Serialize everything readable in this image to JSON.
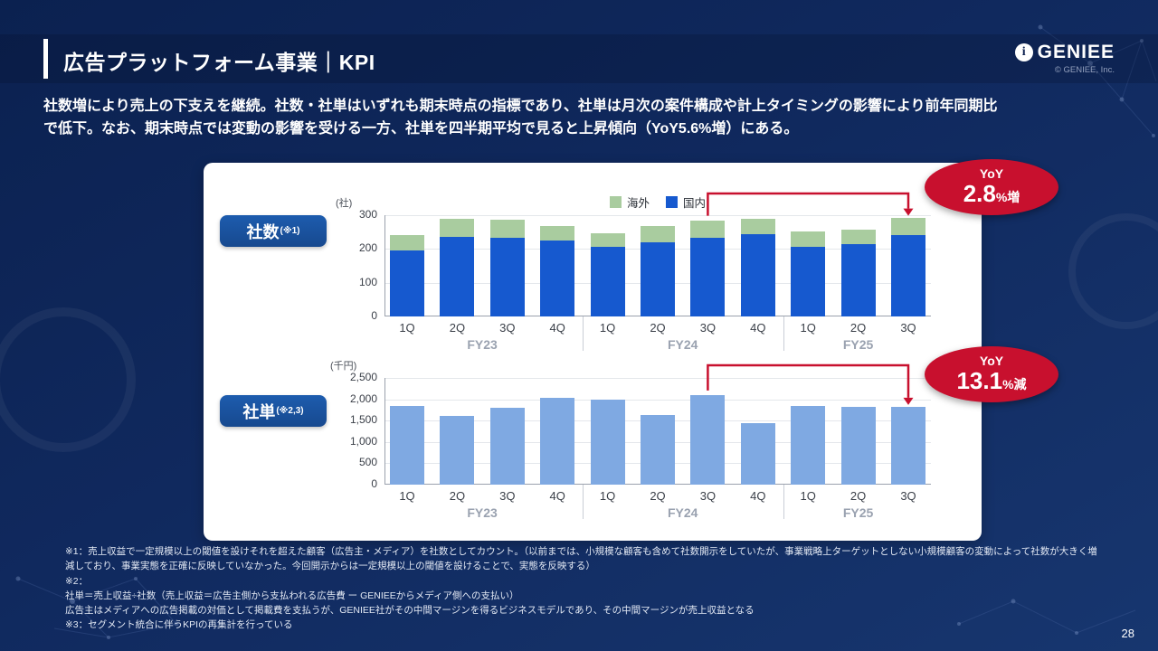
{
  "header": {
    "title": "広告プラットフォーム事業｜KPI",
    "logo_text": "GENIEE",
    "logo_icon_glyph": "i",
    "copyright": "© GENIEE, Inc."
  },
  "intro": {
    "line1": "社数増により売上の下支えを継続。社数・社単はいずれも期末時点の指標であり、社単は月次の案件構成や計上タイミングの影響により前年同期比",
    "line2": "で低下。なお、期末時点では変動の影響を受ける一方、社単を四半期平均で見ると上昇傾向（YoY5.6%増）にある。"
  },
  "kpi_badges": [
    {
      "label": "社数",
      "sup": "(※1)"
    },
    {
      "label": "社単",
      "sup": "(※2,3)"
    }
  ],
  "colors": {
    "domestic_blue": "#1659cf",
    "overseas_green": "#a9cc9f",
    "light_blue": "#7fa9e2",
    "accent_red": "#c8102e",
    "badge_navy": "#17498f"
  },
  "chart_data": [
    {
      "type": "bar",
      "stacked": true,
      "title": "社数",
      "unit": "(社)",
      "categories": [
        "1Q",
        "2Q",
        "3Q",
        "4Q",
        "1Q",
        "2Q",
        "3Q",
        "4Q",
        "1Q",
        "2Q",
        "3Q"
      ],
      "fiscal_years": [
        {
          "label": "FY23",
          "start": 0,
          "end": 3
        },
        {
          "label": "FY24",
          "start": 4,
          "end": 7
        },
        {
          "label": "FY25",
          "start": 8,
          "end": 10
        }
      ],
      "series": [
        {
          "name": "国内",
          "color": "#1659cf",
          "values": [
            196,
            236,
            233,
            225,
            205,
            220,
            232,
            243,
            205,
            215,
            242
          ]
        },
        {
          "name": "海外",
          "color": "#a9cc9f",
          "values": [
            44,
            52,
            53,
            43,
            42,
            47,
            53,
            47,
            47,
            42,
            51
          ]
        }
      ],
      "legend": [
        {
          "label": "海外",
          "color": "#a9cc9f"
        },
        {
          "label": "国内",
          "color": "#1659cf"
        }
      ],
      "ylim": [
        0,
        300
      ],
      "yticks": [
        0,
        100,
        200,
        300
      ],
      "ytick_labels": [
        "0",
        "100",
        "200",
        "300"
      ],
      "grid": true,
      "yoy_arrow": {
        "from_index": 6,
        "to_index": 10
      },
      "yoy_badge": {
        "label": "YoY",
        "value": "2.8",
        "suffix": "%増"
      }
    },
    {
      "type": "bar",
      "stacked": false,
      "title": "社単",
      "unit": "(千円)",
      "categories": [
        "1Q",
        "2Q",
        "3Q",
        "4Q",
        "1Q",
        "2Q",
        "3Q",
        "4Q",
        "1Q",
        "2Q",
        "3Q"
      ],
      "fiscal_years": [
        {
          "label": "FY23",
          "start": 0,
          "end": 3
        },
        {
          "label": "FY24",
          "start": 4,
          "end": 7
        },
        {
          "label": "FY25",
          "start": 8,
          "end": 10
        }
      ],
      "series": [
        {
          "name": "社単",
          "color": "#7fa9e2",
          "values": [
            1850,
            1600,
            1800,
            2030,
            2000,
            1630,
            2100,
            1450,
            1850,
            1830,
            1825
          ]
        }
      ],
      "ylim": [
        0,
        2500
      ],
      "yticks": [
        0,
        500,
        1000,
        1500,
        2000,
        2500
      ],
      "ytick_labels": [
        "0",
        "500",
        "1,000",
        "1,500",
        "2,000",
        "2,500"
      ],
      "grid": true,
      "yoy_arrow": {
        "from_index": 6,
        "to_index": 10
      },
      "yoy_badge": {
        "label": "YoY",
        "value": "13.1",
        "suffix": "%減"
      }
    }
  ],
  "footnotes": [
    "※1：売上収益で一定規模以上の閾値を設けそれを超えた顧客（広告主・メディア）を社数としてカウント。（以前までは、小規模な顧客も含めて社数開示をしていたが、事業戦略上ターゲットとしない小規模顧客の変動によって社数が大きく増減しており、事業実態を正確に反映していなかった。今回開示からは一定規模以上の閾値を設けることで、実態を反映する）",
    "※2：",
    "社単＝売上収益÷社数（売上収益＝広告主側から支払われる広告費 ー GENIEEからメディア側への支払い）",
    "広告主はメディアへの広告掲載の対価として掲載費を支払うが、GENIEE社がその中間マージンを得るビジネスモデルであり、その中間マージンが売上収益となる",
    "※3：セグメント統合に伴うKPIの再集計を行っている"
  ],
  "page_number": "28"
}
